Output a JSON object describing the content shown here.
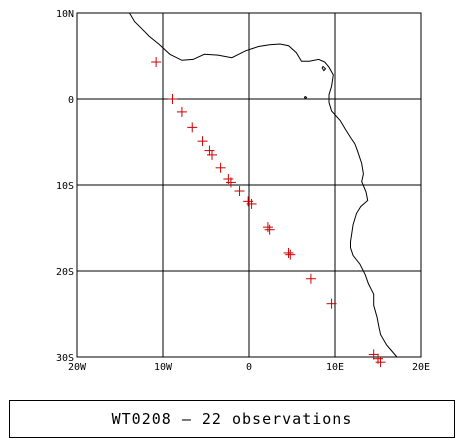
{
  "map": {
    "lon_range": [
      -20,
      20
    ],
    "lat_range": [
      -30,
      10
    ],
    "grid_lon": [
      -10,
      0,
      10
    ],
    "grid_lat": [
      0,
      -10,
      -20
    ],
    "x_ticks": [
      {
        "value": -20,
        "label": "20W"
      },
      {
        "value": -10,
        "label": "10W"
      },
      {
        "value": 0,
        "label": "0"
      },
      {
        "value": 10,
        "label": "10E"
      },
      {
        "value": 20,
        "label": "20E"
      }
    ],
    "y_ticks": [
      {
        "value": 10,
        "label": "10N"
      },
      {
        "value": 0,
        "label": "0"
      },
      {
        "value": -10,
        "label": "10S"
      },
      {
        "value": -20,
        "label": "20S"
      },
      {
        "value": -30,
        "label": "30S"
      }
    ],
    "marker_color": "#cc0000",
    "coast_color": "#000000",
    "observations": [
      [
        -10.8,
        4.3
      ],
      [
        -8.9,
        0.0
      ],
      [
        -7.8,
        -1.5
      ],
      [
        -6.6,
        -3.3
      ],
      [
        -5.4,
        -4.9
      ],
      [
        -4.6,
        -6.0
      ],
      [
        -4.3,
        -6.5
      ],
      [
        -3.3,
        -8.0
      ],
      [
        -2.4,
        -9.3
      ],
      [
        -2.1,
        -9.7
      ],
      [
        -1.1,
        -10.7
      ],
      [
        -0.1,
        -11.9
      ],
      [
        0.3,
        -12.2
      ],
      [
        2.2,
        -14.9
      ],
      [
        2.4,
        -15.2
      ],
      [
        4.6,
        -17.9
      ],
      [
        4.8,
        -18.1
      ],
      [
        7.2,
        -20.9
      ],
      [
        9.6,
        -23.8
      ],
      [
        14.5,
        -29.7
      ],
      [
        15.0,
        -30.2
      ],
      [
        15.3,
        -30.6
      ]
    ],
    "coastline": [
      [
        -13.9,
        10.0
      ],
      [
        -13.3,
        9.0
      ],
      [
        -12.4,
        8.1
      ],
      [
        -11.6,
        7.3
      ],
      [
        -10.4,
        6.3
      ],
      [
        -9.2,
        5.2
      ],
      [
        -7.8,
        4.5
      ],
      [
        -6.5,
        4.6
      ],
      [
        -5.2,
        5.2
      ],
      [
        -3.6,
        5.1
      ],
      [
        -2.0,
        4.8
      ],
      [
        -0.4,
        5.6
      ],
      [
        1.1,
        6.1
      ],
      [
        2.4,
        6.3
      ],
      [
        3.6,
        6.4
      ],
      [
        4.6,
        6.2
      ],
      [
        5.5,
        5.4
      ],
      [
        6.1,
        4.4
      ],
      [
        7.0,
        4.4
      ],
      [
        8.1,
        4.6
      ],
      [
        8.8,
        4.3
      ],
      [
        9.3,
        3.7
      ],
      [
        9.8,
        2.8
      ],
      [
        9.6,
        1.5
      ],
      [
        9.3,
        0.5
      ],
      [
        9.3,
        -0.4
      ],
      [
        9.6,
        -1.4
      ],
      [
        10.6,
        -2.5
      ],
      [
        11.2,
        -3.5
      ],
      [
        11.9,
        -4.6
      ],
      [
        12.3,
        -5.2
      ],
      [
        12.6,
        -6.0
      ],
      [
        13.1,
        -7.5
      ],
      [
        13.3,
        -8.7
      ],
      [
        13.1,
        -9.6
      ],
      [
        13.6,
        -10.8
      ],
      [
        13.8,
        -11.8
      ],
      [
        13.0,
        -12.5
      ],
      [
        12.5,
        -13.3
      ],
      [
        12.1,
        -14.6
      ],
      [
        11.8,
        -16.6
      ],
      [
        11.8,
        -17.3
      ],
      [
        12.1,
        -18.2
      ],
      [
        12.9,
        -19.2
      ],
      [
        13.5,
        -20.4
      ],
      [
        13.9,
        -21.5
      ],
      [
        14.5,
        -22.7
      ],
      [
        14.5,
        -24.0
      ],
      [
        14.9,
        -25.4
      ],
      [
        15.1,
        -26.5
      ],
      [
        15.3,
        -27.4
      ],
      [
        16.0,
        -28.6
      ],
      [
        16.6,
        -29.3
      ],
      [
        17.2,
        -30.0
      ]
    ],
    "islands": [
      [
        [
          8.6,
          3.8
        ],
        [
          8.9,
          3.5
        ],
        [
          8.7,
          3.3
        ],
        [
          8.5,
          3.6
        ],
        [
          8.6,
          3.8
        ]
      ],
      [
        [
          6.5,
          0.3
        ],
        [
          6.7,
          0.2
        ],
        [
          6.6,
          0.05
        ],
        [
          6.45,
          0.15
        ],
        [
          6.5,
          0.3
        ]
      ]
    ]
  },
  "caption": {
    "text": "WT0208 — 22 observations"
  }
}
